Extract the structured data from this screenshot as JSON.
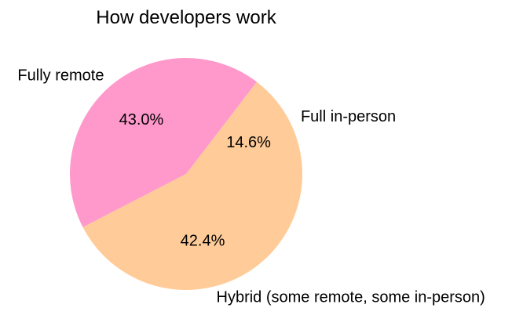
{
  "chart_data": {
    "type": "pie",
    "title": "How developers work",
    "categories": [
      "Full in-person",
      "Fully remote",
      "Hybrid (some remote, some in-person)"
    ],
    "values": [
      14.6,
      43.0,
      42.4
    ],
    "value_labels": [
      "14.6%",
      "43.0%",
      "42.4%"
    ],
    "colors": [
      "#ffcc99",
      "#ff99cc",
      "#ffcc99"
    ],
    "start_angle_deg": 0,
    "direction": "counterclockwise"
  }
}
